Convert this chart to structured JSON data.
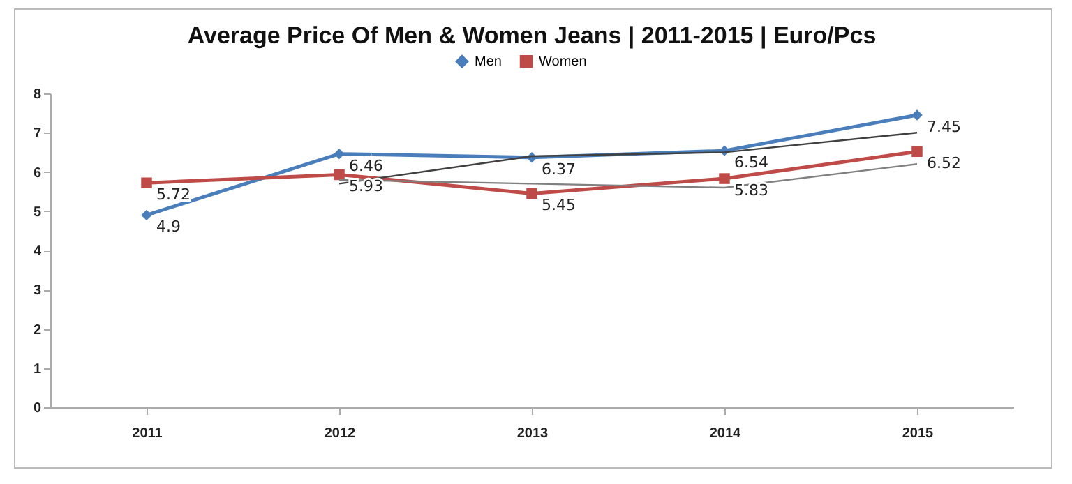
{
  "chart_data": {
    "type": "line",
    "title": "Average Price Of Men & Women Jeans | 2011-2015 | Euro/Pcs",
    "categories": [
      "2011",
      "2012",
      "2013",
      "2014",
      "2015"
    ],
    "ylim": [
      0,
      8
    ],
    "yticks": [
      0,
      1,
      2,
      3,
      4,
      5,
      6,
      7,
      8
    ],
    "grid": false,
    "legend": "top",
    "series": [
      {
        "name": "Men",
        "color": "#4a7ebb",
        "marker": "diamond",
        "values": [
          4.9,
          6.46,
          6.37,
          6.54,
          7.45
        ],
        "value_labels": [
          "4.9",
          "6.46",
          "6.37",
          "6.54",
          "7.45"
        ]
      },
      {
        "name": "Women",
        "color": "#be4b48",
        "marker": "square",
        "values": [
          5.72,
          5.93,
          5.45,
          5.83,
          6.52
        ],
        "value_labels": [
          "5.72",
          "5.93",
          "5.45",
          "5.83",
          "6.52"
        ]
      },
      {
        "type": "line",
        "color": "#404040",
        "marker": "none",
        "values": [
          null,
          5.7,
          6.4,
          6.5,
          7.0
        ]
      },
      {
        "type": "line",
        "color": "#808080",
        "marker": "none",
        "values": [
          null,
          5.8,
          5.7,
          5.6,
          6.2
        ]
      }
    ]
  }
}
